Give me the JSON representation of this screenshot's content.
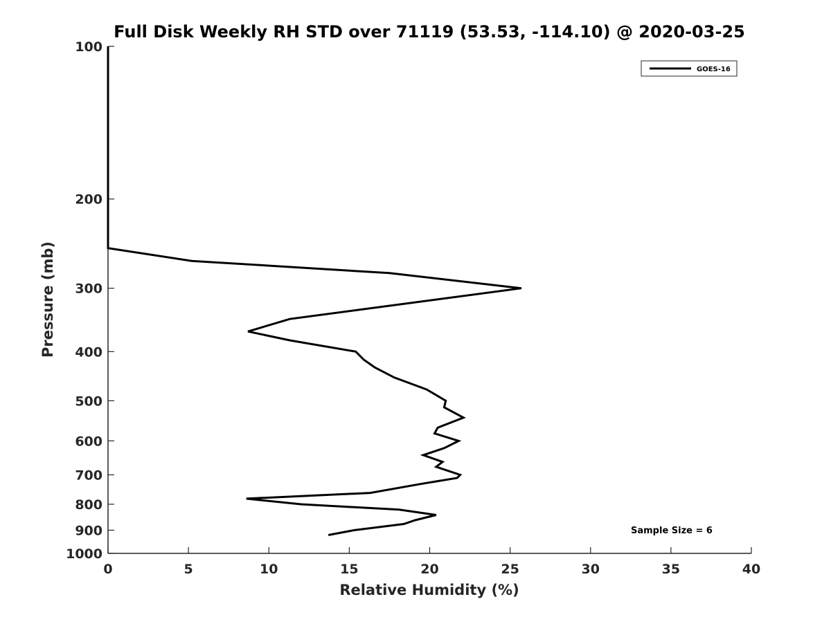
{
  "chart_data": {
    "type": "line",
    "title": "Full Disk Weekly RH STD over 71119 (53.53, -114.10) @ 2020-03-25",
    "xlabel": "Relative Humidity (%)",
    "ylabel": "Pressure (mb)",
    "xlim": [
      0,
      40
    ],
    "ylim": [
      1000,
      100
    ],
    "y_scale": "log",
    "x_ticks": [
      0,
      5,
      10,
      15,
      20,
      25,
      30,
      35,
      40
    ],
    "x_tick_labels": [
      "0",
      "5",
      "10",
      "15",
      "20",
      "25",
      "30",
      "35",
      "40"
    ],
    "y_ticks": [
      100,
      200,
      300,
      400,
      500,
      600,
      700,
      800,
      900,
      1000
    ],
    "y_tick_labels": [
      "100",
      "200",
      "300",
      "400",
      "500",
      "600",
      "700",
      "800",
      "900",
      "1000"
    ],
    "grid": false,
    "legend_position": "top-right",
    "annotation": "Sample Size = 6",
    "series": [
      {
        "name": "GOES-16",
        "color": "#000000",
        "points": [
          [
            0,
            100
          ],
          [
            0,
            150
          ],
          [
            0,
            200
          ],
          [
            0,
            250
          ],
          [
            5.2,
            265
          ],
          [
            17.5,
            280
          ],
          [
            25.7,
            300
          ],
          [
            11.3,
            345
          ],
          [
            8.7,
            365
          ],
          [
            11.3,
            380
          ],
          [
            15.4,
            400
          ],
          [
            15.9,
            415
          ],
          [
            16.6,
            430
          ],
          [
            17.8,
            450
          ],
          [
            19.8,
            475
          ],
          [
            21.0,
            500
          ],
          [
            20.9,
            515
          ],
          [
            22.1,
            540
          ],
          [
            20.5,
            565
          ],
          [
            20.3,
            580
          ],
          [
            21.8,
            600
          ],
          [
            20.9,
            620
          ],
          [
            19.6,
            640
          ],
          [
            20.8,
            660
          ],
          [
            20.4,
            675
          ],
          [
            21.9,
            700
          ],
          [
            21.7,
            710
          ],
          [
            19.4,
            730
          ],
          [
            16.3,
            760
          ],
          [
            8.6,
            780
          ],
          [
            12.0,
            800
          ],
          [
            18.1,
            820
          ],
          [
            20.4,
            840
          ],
          [
            19.1,
            860
          ],
          [
            18.4,
            875
          ],
          [
            15.3,
            900
          ],
          [
            13.7,
            920
          ]
        ]
      }
    ]
  }
}
